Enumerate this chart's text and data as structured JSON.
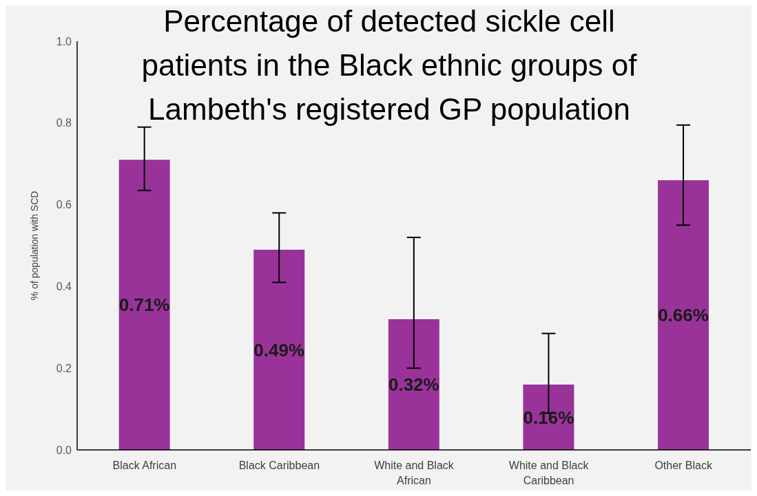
{
  "chart_data": {
    "type": "bar",
    "title": "Percentage of detected sickle cell patients in the Black ethnic groups of Lambeth's registered GP population",
    "ylabel": "% of population with SCD",
    "categories": [
      "Black African",
      "Black Caribbean",
      "White and Black African",
      "White and Black Caribbean",
      "Other Black"
    ],
    "values": [
      0.71,
      0.49,
      0.32,
      0.16,
      0.66
    ],
    "color": "#993399",
    "errors": [
      [
        0.635,
        0.79
      ],
      [
        0.41,
        0.58
      ],
      [
        0.2,
        0.52
      ],
      [
        0.09,
        0.285
      ],
      [
        0.55,
        0.795
      ]
    ],
    "value_labels": [
      "0.71%",
      "0.49%",
      "0.32%",
      "0.16%",
      "0.66%"
    ],
    "ylim": [
      0,
      1
    ],
    "yticks": [
      {
        "value": 0,
        "label": "0.0"
      },
      {
        "value": 0.2,
        "label": "0.2"
      },
      {
        "value": 0.4,
        "label": "0.4"
      },
      {
        "value": 0.6,
        "label": "0.6"
      },
      {
        "value": 0.8,
        "label": "0.8"
      },
      {
        "value": 1,
        "label": "1.0"
      }
    ],
    "grid": false,
    "legend": false
  }
}
